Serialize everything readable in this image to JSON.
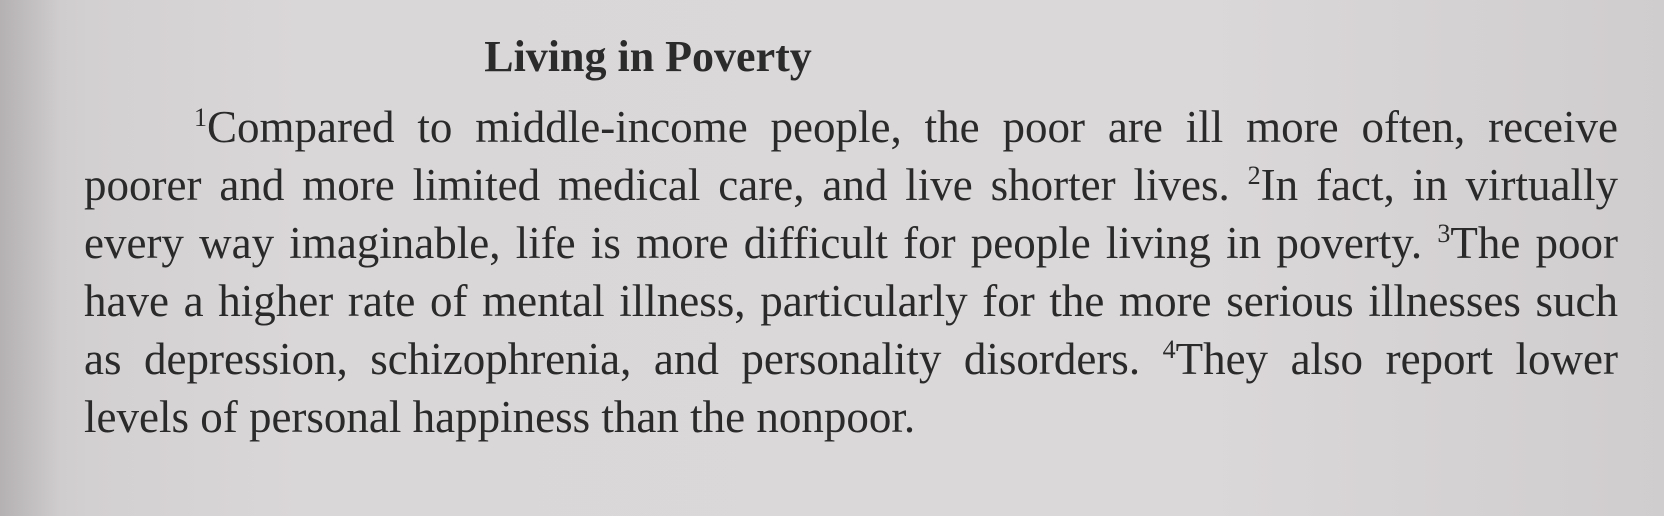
{
  "document": {
    "title": "Living in Poverty",
    "sentences": [
      {
        "num": "1",
        "text": "Compared to middle-income people, the poor are ill more often, receive poorer and more limited medical care, and live shorter lives. "
      },
      {
        "num": "2",
        "text": "In fact, in virtually every way imaginable, life is more difficult for people living in poverty. "
      },
      {
        "num": "3",
        "text": "The poor have a higher rate of mental illness, particularly for the more serious illnesses such as depression, schizophrenia, and personality disorders. "
      },
      {
        "num": "4",
        "text": "They also report lower levels of personal happiness than the nonpoor."
      }
    ]
  }
}
